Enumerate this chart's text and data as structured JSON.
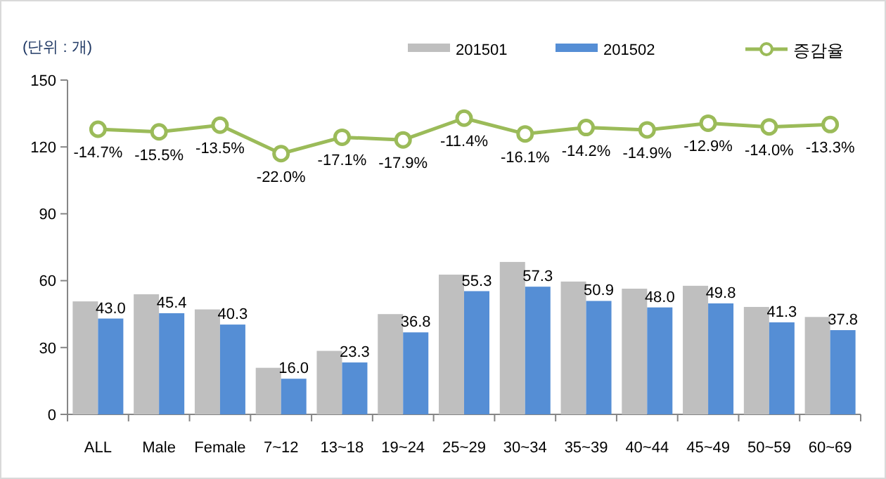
{
  "chart_data": {
    "type": "bar",
    "ylabel": "(단위 : 개)",
    "categories": [
      "ALL",
      "Male",
      "Female",
      "7~12",
      "13~18",
      "19~24",
      "25~29",
      "30~34",
      "35~39",
      "40~44",
      "45~49",
      "50~59",
      "60~69"
    ],
    "series": [
      {
        "name": "201501",
        "color": "#bfbfbf",
        "values": [
          50.7,
          53.9,
          47.1,
          20.9,
          28.5,
          45.0,
          62.7,
          68.4,
          59.6,
          56.4,
          57.7,
          48.2,
          43.7
        ]
      },
      {
        "name": "201502",
        "color": "#558ed5",
        "values": [
          43.0,
          45.4,
          40.3,
          16.0,
          23.3,
          36.8,
          55.3,
          57.3,
          50.9,
          48.0,
          49.8,
          41.3,
          37.8
        ],
        "value_labels": [
          "43.0",
          "45.4",
          "40.3",
          "16.0",
          "23.3",
          "36.8",
          "55.3",
          "57.3",
          "50.9",
          "48.0",
          "49.8",
          "41.3",
          "37.8"
        ]
      },
      {
        "name": "증감율",
        "type": "line",
        "axis": "y2",
        "color": "#9bbb59",
        "marker": "circle",
        "values": [
          -14.7,
          -15.5,
          -13.5,
          -22.0,
          -17.1,
          -17.9,
          -11.4,
          -16.1,
          -14.2,
          -14.9,
          -12.9,
          -14.0,
          -13.3
        ],
        "value_labels": [
          "-14.7%",
          "-15.5%",
          "-13.5%",
          "-22.0%",
          "-17.1%",
          "-17.9%",
          "-11.4%",
          "-16.1%",
          "-14.2%",
          "-14.9%",
          "-12.9%",
          "-14.0%",
          "-13.3%"
        ]
      }
    ],
    "ylim": [
      0,
      150
    ],
    "yticks": [
      0,
      30,
      60,
      90,
      120,
      150
    ],
    "y2lim": [
      -100,
      0
    ],
    "legend": "top right",
    "grid": false
  }
}
